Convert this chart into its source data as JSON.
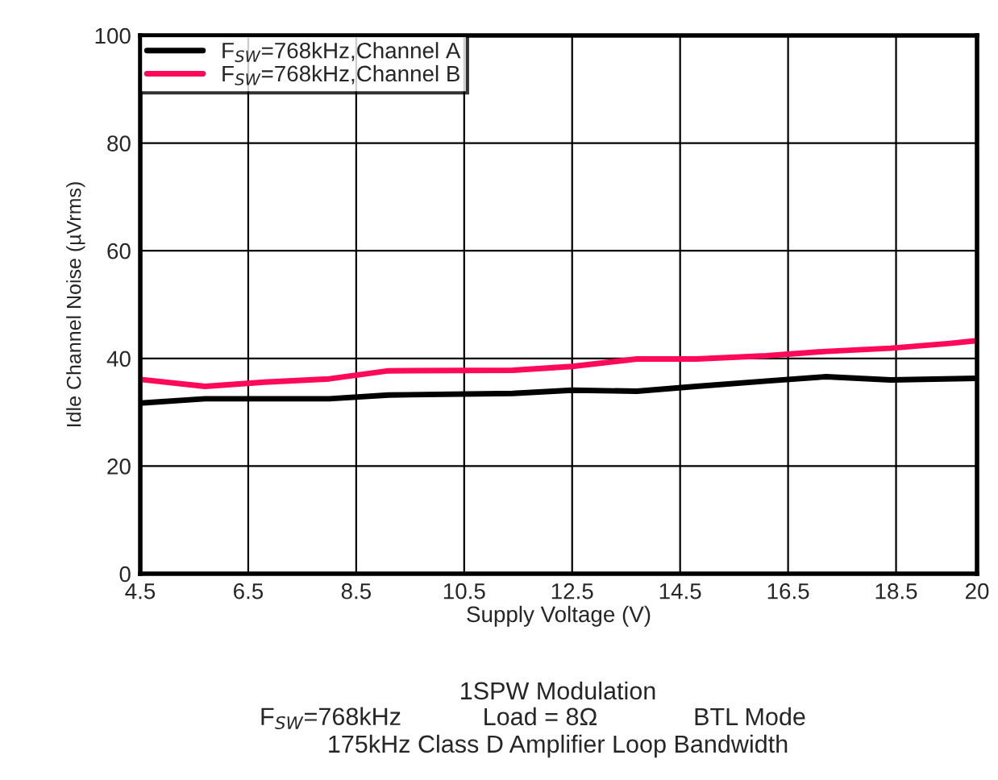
{
  "chart_data": {
    "type": "line",
    "xlabel": "Supply Voltage (V)",
    "ylabel": "Idle Channel Noise (µVrms)",
    "series": [
      {
        "name": "F$_{SW}$=768kHz,Channel A",
        "color": "#000000",
        "x": [
          4.5,
          5.7,
          8.0,
          9.1,
          11.4,
          12.5,
          13.7,
          14.8,
          16.1,
          17.2,
          18.4,
          20
        ],
        "values": [
          31.7,
          32.5,
          32.5,
          33.2,
          33.5,
          34.1,
          33.9,
          34.8,
          35.8,
          36.6,
          36.0,
          36.3
        ]
      },
      {
        "name": "F$_{SW}$=768kHz,Channel B",
        "color": "#ff0a5a",
        "x": [
          4.5,
          5.7,
          6.8,
          8.0,
          9.1,
          11.4,
          12.5,
          13.7,
          14.8,
          16.1,
          17.2,
          18.4,
          19.5,
          20
        ],
        "values": [
          36.1,
          34.8,
          35.6,
          36.2,
          37.7,
          37.8,
          38.5,
          39.9,
          39.9,
          40.5,
          41.3,
          41.9,
          42.8,
          43.3
        ]
      }
    ],
    "xlim": [
      4.5,
      20
    ],
    "xticks": [
      4.5,
      6.5,
      8.5,
      10.5,
      12.5,
      14.5,
      16.5,
      18.5,
      20
    ],
    "ylim": [
      0,
      100
    ],
    "yticks": [
      0,
      20,
      40,
      60,
      80,
      100
    ],
    "grid": true,
    "legend": "top left",
    "line_style": "solid",
    "marker": "none",
    "annotations": [
      "1SPW Modulation",
      "F$_{SW}$=768kHz",
      "Load = 8Ω",
      "BTL Mode",
      "175kHz Class D Amplifier Loop Bandwidth"
    ]
  }
}
